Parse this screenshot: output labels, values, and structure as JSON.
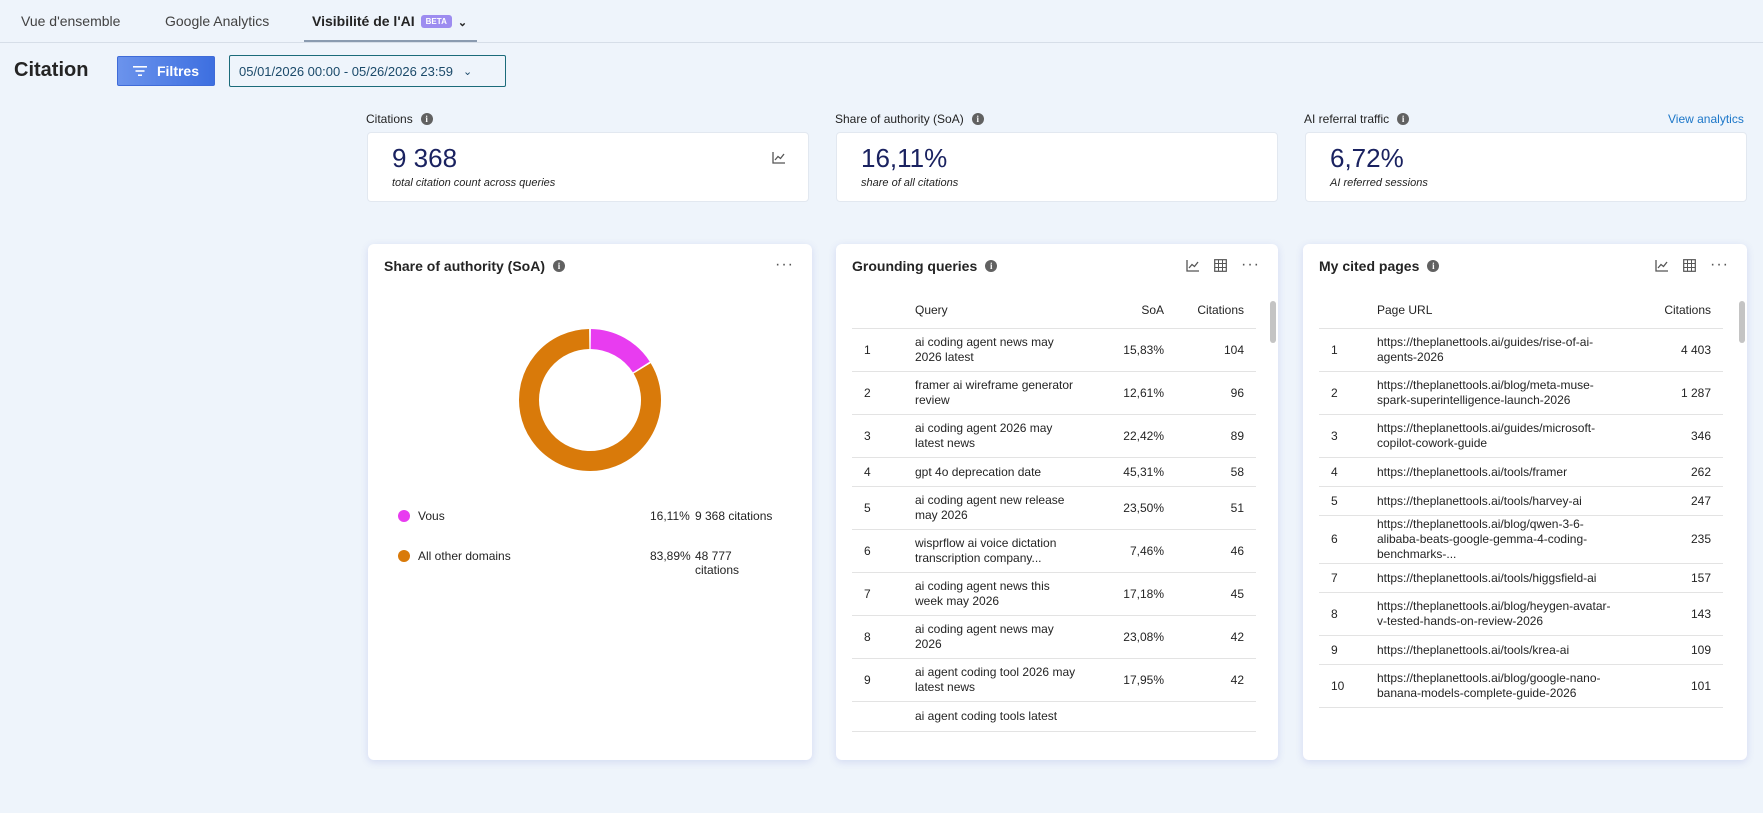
{
  "tabs": [
    {
      "label": "Vue d'ensemble"
    },
    {
      "label": "Google Analytics"
    },
    {
      "label": "Visibilité de l'AI",
      "badge": "BETA"
    }
  ],
  "header": {
    "title": "Citation",
    "filter_label": "Filtres",
    "date_range": "05/01/2026 00:00 - 05/26/2026 23:59"
  },
  "kpis": [
    {
      "label": "Citations",
      "value": "9 368",
      "sub": "total citation count across queries"
    },
    {
      "label": "Share of authority (SoA)",
      "value": "16,11%",
      "sub": "share of all citations"
    },
    {
      "label": "AI referral traffic",
      "value": "6,72%",
      "sub": "AI referred sessions",
      "link": "View analytics"
    }
  ],
  "soa_panel": {
    "title": "Share of authority (SoA)",
    "legend": [
      {
        "name": "Vous",
        "pct": "16,11%",
        "citations": "9 368 citations",
        "color": "#e83cf0"
      },
      {
        "name": "All other domains",
        "pct": "83,89%",
        "citations": "48 777 citations",
        "color": "#d97a0a"
      }
    ]
  },
  "chart_data": {
    "type": "pie",
    "categories": [
      "Vous",
      "All other domains"
    ],
    "values": [
      16.11,
      83.89
    ],
    "colors": [
      "#e83cf0",
      "#d97a0a"
    ],
    "citations": [
      9368,
      48777
    ]
  },
  "grounding": {
    "title": "Grounding queries",
    "columns": [
      "Query",
      "SoA",
      "Citations"
    ],
    "rows": [
      {
        "n": "1",
        "query": "ai coding agent news may 2026 latest",
        "soa": "15,83%",
        "cit": "104"
      },
      {
        "n": "2",
        "query": "framer ai wireframe generator review",
        "soa": "12,61%",
        "cit": "96"
      },
      {
        "n": "3",
        "query": "ai coding agent 2026 may latest news",
        "soa": "22,42%",
        "cit": "89"
      },
      {
        "n": "4",
        "query": "gpt 4o deprecation date",
        "soa": "45,31%",
        "cit": "58"
      },
      {
        "n": "5",
        "query": "ai coding agent new release may 2026",
        "soa": "23,50%",
        "cit": "51"
      },
      {
        "n": "6",
        "query": "wisprflow ai voice dictation transcription company...",
        "soa": "7,46%",
        "cit": "46"
      },
      {
        "n": "7",
        "query": "ai coding agent news this week may 2026",
        "soa": "17,18%",
        "cit": "45"
      },
      {
        "n": "8",
        "query": "ai coding agent news may 2026",
        "soa": "23,08%",
        "cit": "42"
      },
      {
        "n": "9",
        "query": "ai agent coding tool 2026 may latest news",
        "soa": "17,95%",
        "cit": "42"
      },
      {
        "n": "",
        "query": "ai agent coding tools latest",
        "soa": "",
        "cit": ""
      }
    ]
  },
  "pages": {
    "title": "My cited pages",
    "columns": [
      "Page URL",
      "Citations"
    ],
    "rows": [
      {
        "n": "1",
        "url": "https://theplanettools.ai/guides/rise-of-ai-agents-2026",
        "cit": "4 403"
      },
      {
        "n": "2",
        "url": "https://theplanettools.ai/blog/meta-muse-spark-superintelligence-launch-2026",
        "cit": "1 287"
      },
      {
        "n": "3",
        "url": "https://theplanettools.ai/guides/microsoft-copilot-cowork-guide",
        "cit": "346"
      },
      {
        "n": "4",
        "url": "https://theplanettools.ai/tools/framer",
        "cit": "262"
      },
      {
        "n": "5",
        "url": "https://theplanettools.ai/tools/harvey-ai",
        "cit": "247"
      },
      {
        "n": "6",
        "url": "https://theplanettools.ai/blog/qwen-3-6-alibaba-beats-google-gemma-4-coding-benchmarks-...",
        "cit": "235"
      },
      {
        "n": "7",
        "url": "https://theplanettools.ai/tools/higgsfield-ai",
        "cit": "157"
      },
      {
        "n": "8",
        "url": "https://theplanettools.ai/blog/heygen-avatar-v-tested-hands-on-review-2026",
        "cit": "143"
      },
      {
        "n": "9",
        "url": "https://theplanettools.ai/tools/krea-ai",
        "cit": "109"
      },
      {
        "n": "10",
        "url": "https://theplanettools.ai/blog/google-nano-banana-models-complete-guide-2026",
        "cit": "101"
      }
    ]
  }
}
